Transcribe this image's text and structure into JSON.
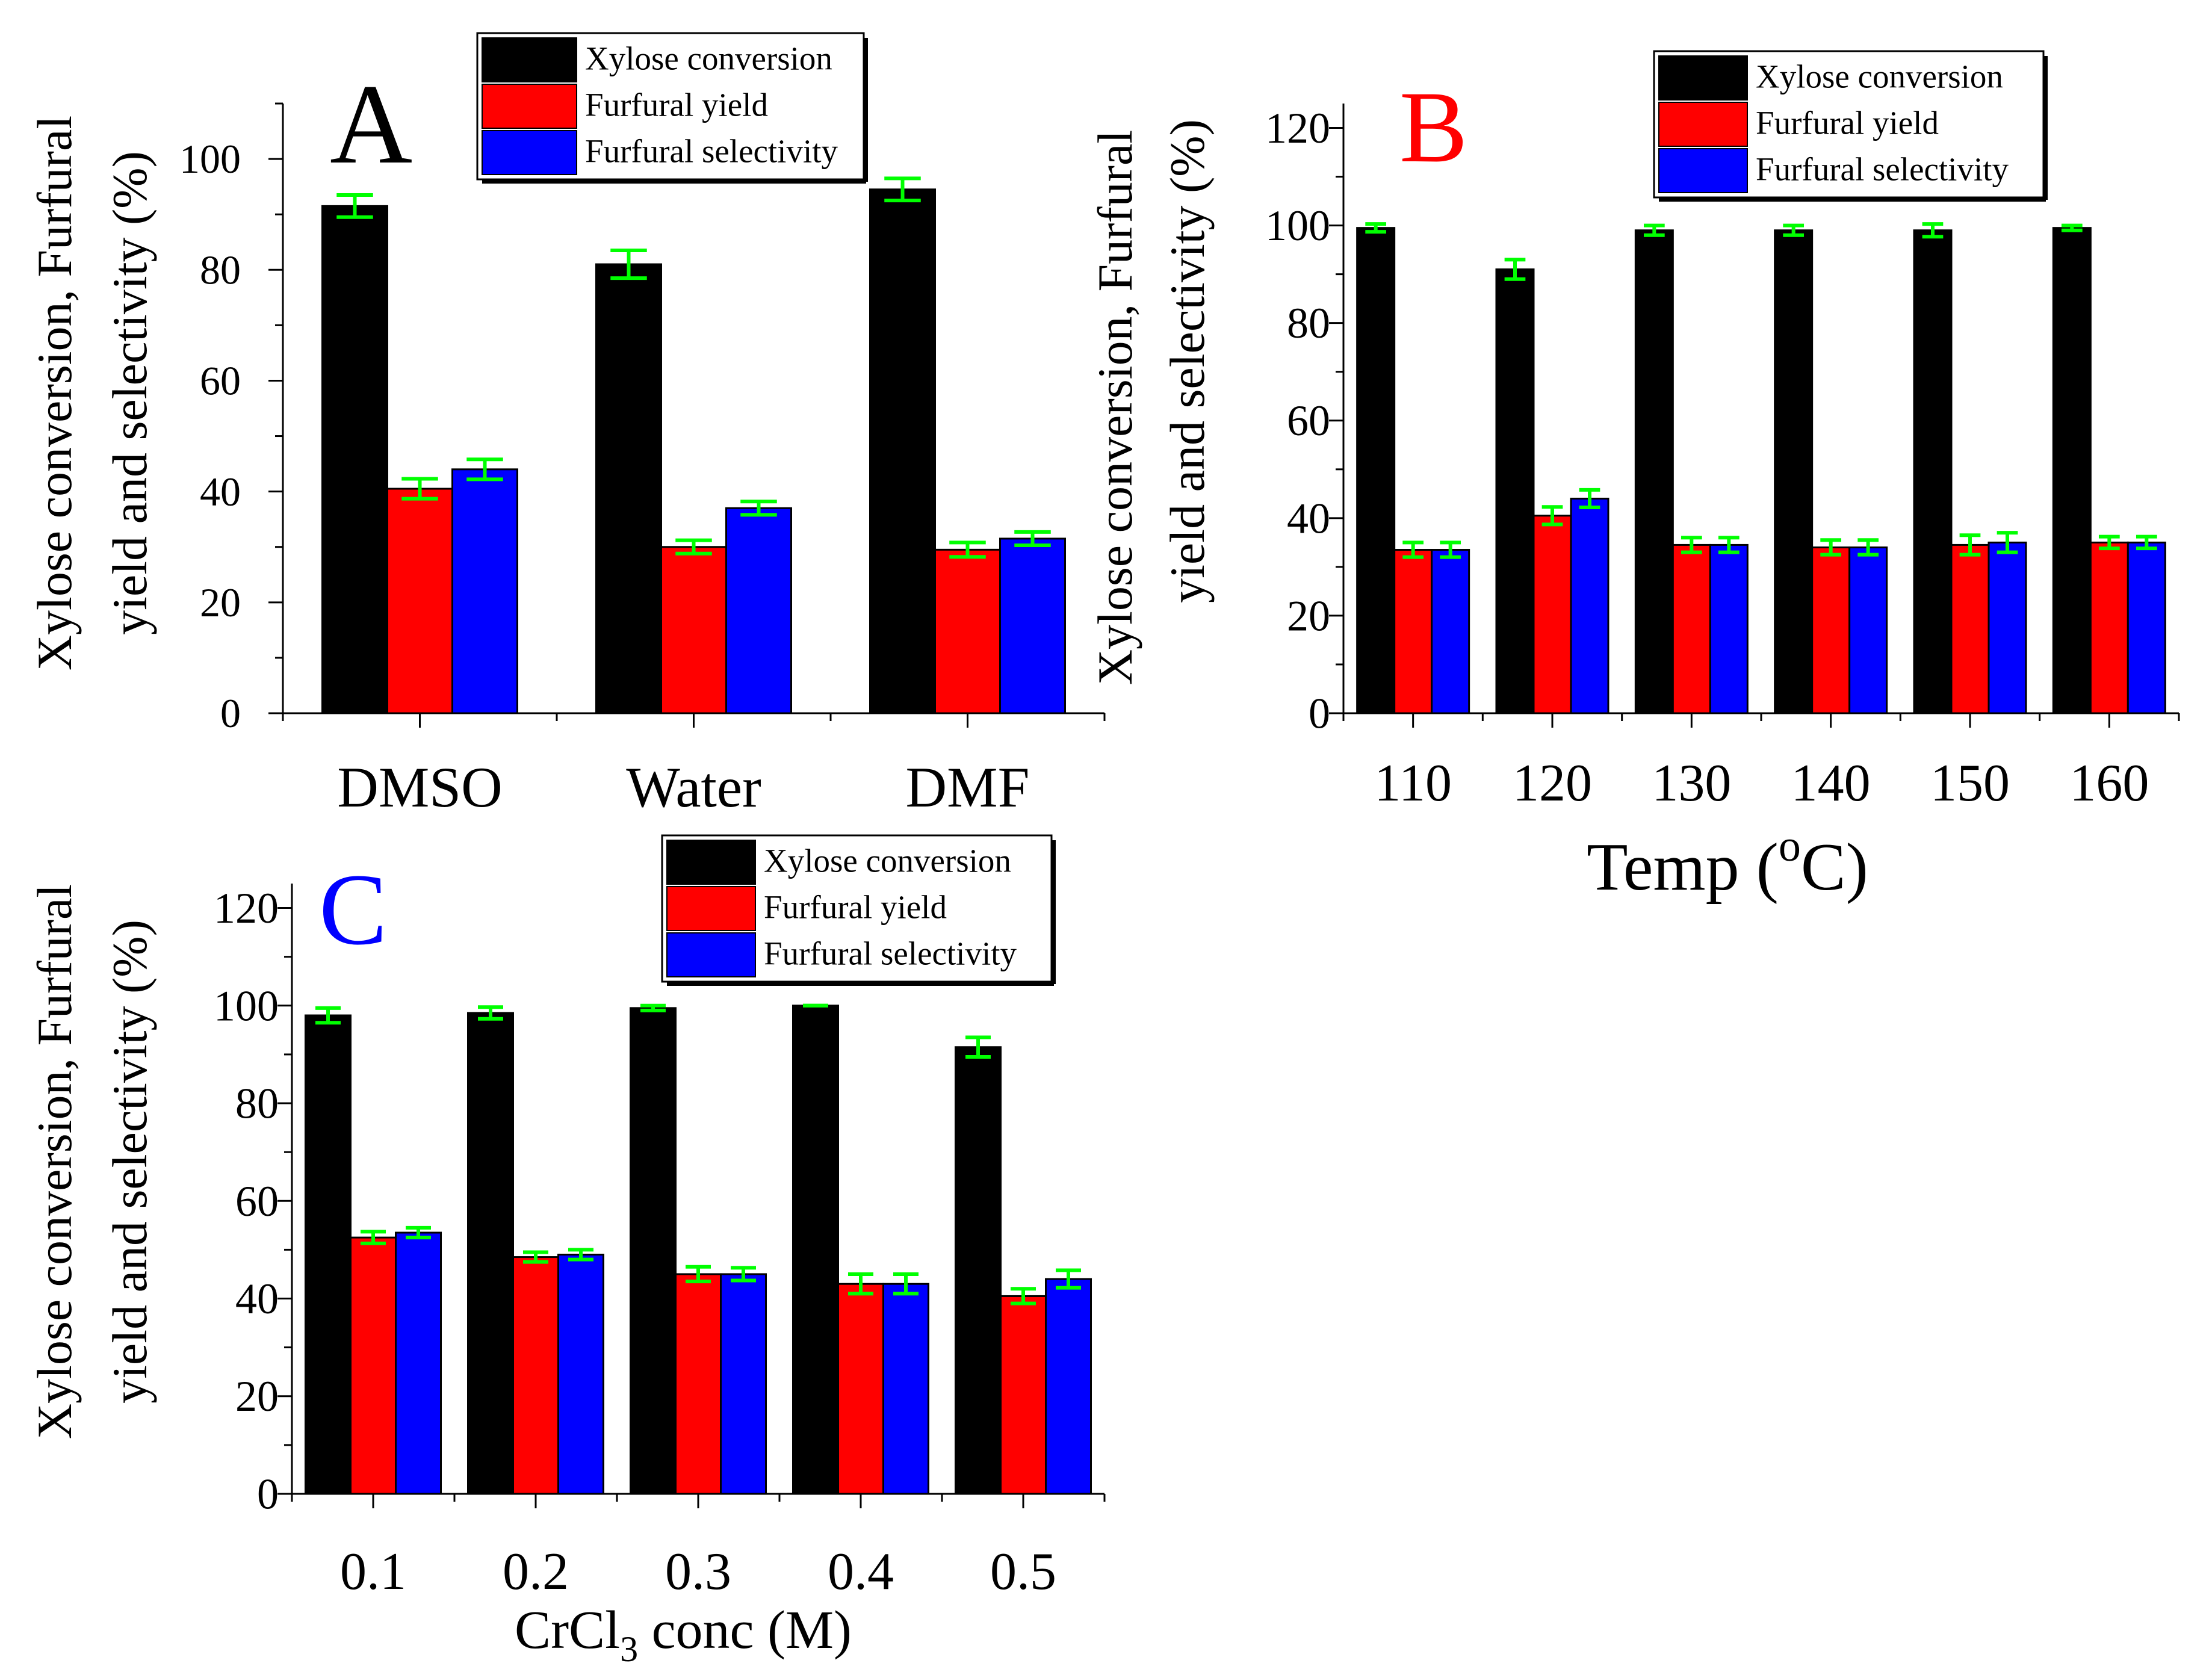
{
  "colors": {
    "conversion": "#000000",
    "yield": "#ff0000",
    "selectivity": "#0000ff",
    "error_bar": "#00ff00",
    "label_A": "#000000",
    "label_B": "#ff0000",
    "label_C": "#0000ff"
  },
  "chart_data": [
    {
      "id": "A",
      "type": "bar",
      "panel_label": "A",
      "ylabel_line1": "Xylose conversion, Furfural",
      "ylabel_line2": "yield and selectivity (%)",
      "xlabel": "",
      "ylim": [
        0,
        110
      ],
      "yticks": [
        0,
        20,
        40,
        60,
        80,
        100
      ],
      "categories": [
        "DMSO",
        "Water",
        "DMF"
      ],
      "series": [
        {
          "name": "Xylose conversion",
          "values": [
            91.5,
            81.0,
            94.5
          ],
          "errors": [
            2.0,
            2.5,
            2.0
          ]
        },
        {
          "name": "Furfural yield",
          "values": [
            40.5,
            30.0,
            29.5
          ],
          "errors": [
            1.8,
            1.2,
            1.3
          ]
        },
        {
          "name": "Furfural selectivity",
          "values": [
            44.0,
            37.0,
            31.5
          ],
          "errors": [
            1.8,
            1.2,
            1.2
          ]
        }
      ],
      "legend": [
        "Xylose conversion",
        "Furfural yield",
        "Furfural selectivity"
      ]
    },
    {
      "id": "B",
      "type": "bar",
      "panel_label": "B",
      "ylabel_line1": "Xylose conversion, Furfural",
      "ylabel_line2": "yield and selectivity (%)",
      "xlabel": "Temp (",
      "xlabel_sup": "o",
      "xlabel_end": "C)",
      "ylim": [
        0,
        125
      ],
      "yticks": [
        0,
        20,
        40,
        60,
        80,
        100,
        120
      ],
      "categories": [
        "110",
        "120",
        "130",
        "140",
        "150",
        "160"
      ],
      "series": [
        {
          "name": "Xylose conversion",
          "values": [
            99.5,
            91.0,
            99.0,
            99.0,
            99.0,
            99.5
          ],
          "errors": [
            0.8,
            2.0,
            1.0,
            1.0,
            1.3,
            0.5
          ]
        },
        {
          "name": "Furfural yield",
          "values": [
            33.5,
            40.5,
            34.5,
            34.0,
            34.5,
            35.0
          ],
          "errors": [
            1.5,
            1.8,
            1.5,
            1.5,
            2.0,
            1.2
          ]
        },
        {
          "name": "Furfural selectivity",
          "values": [
            33.5,
            44.0,
            34.5,
            34.0,
            35.0,
            35.0
          ],
          "errors": [
            1.5,
            1.8,
            1.5,
            1.5,
            2.0,
            1.2
          ]
        }
      ],
      "legend": [
        "Xylose conversion",
        "Furfural yield",
        "Furfural selectivity"
      ]
    },
    {
      "id": "C",
      "type": "bar",
      "panel_label": "C",
      "ylabel_line1": "Xylose conversion, Furfural",
      "ylabel_line2": "yield and selectivity (%)",
      "xlabel": "CrCl",
      "xlabel_sub": "3",
      "xlabel_end": " conc (M)",
      "ylim": [
        0,
        125
      ],
      "yticks": [
        0,
        20,
        40,
        60,
        80,
        100,
        120
      ],
      "categories": [
        "0.1",
        "0.2",
        "0.3",
        "0.4",
        "0.5"
      ],
      "series": [
        {
          "name": "Xylose conversion",
          "values": [
            98.0,
            98.5,
            99.5,
            100.0,
            91.5
          ],
          "errors": [
            1.5,
            1.2,
            0.5,
            0.0,
            2.0
          ]
        },
        {
          "name": "Furfural yield",
          "values": [
            52.5,
            48.5,
            45.0,
            43.0,
            40.5
          ],
          "errors": [
            1.2,
            1.0,
            1.5,
            2.0,
            1.5
          ]
        },
        {
          "name": "Furfural selectivity",
          "values": [
            53.5,
            49.0,
            45.0,
            43.0,
            44.0
          ],
          "errors": [
            1.0,
            1.0,
            1.3,
            2.0,
            1.8
          ]
        }
      ],
      "legend": [
        "Xylose conversion",
        "Furfural yield",
        "Furfural selectivity"
      ]
    }
  ]
}
